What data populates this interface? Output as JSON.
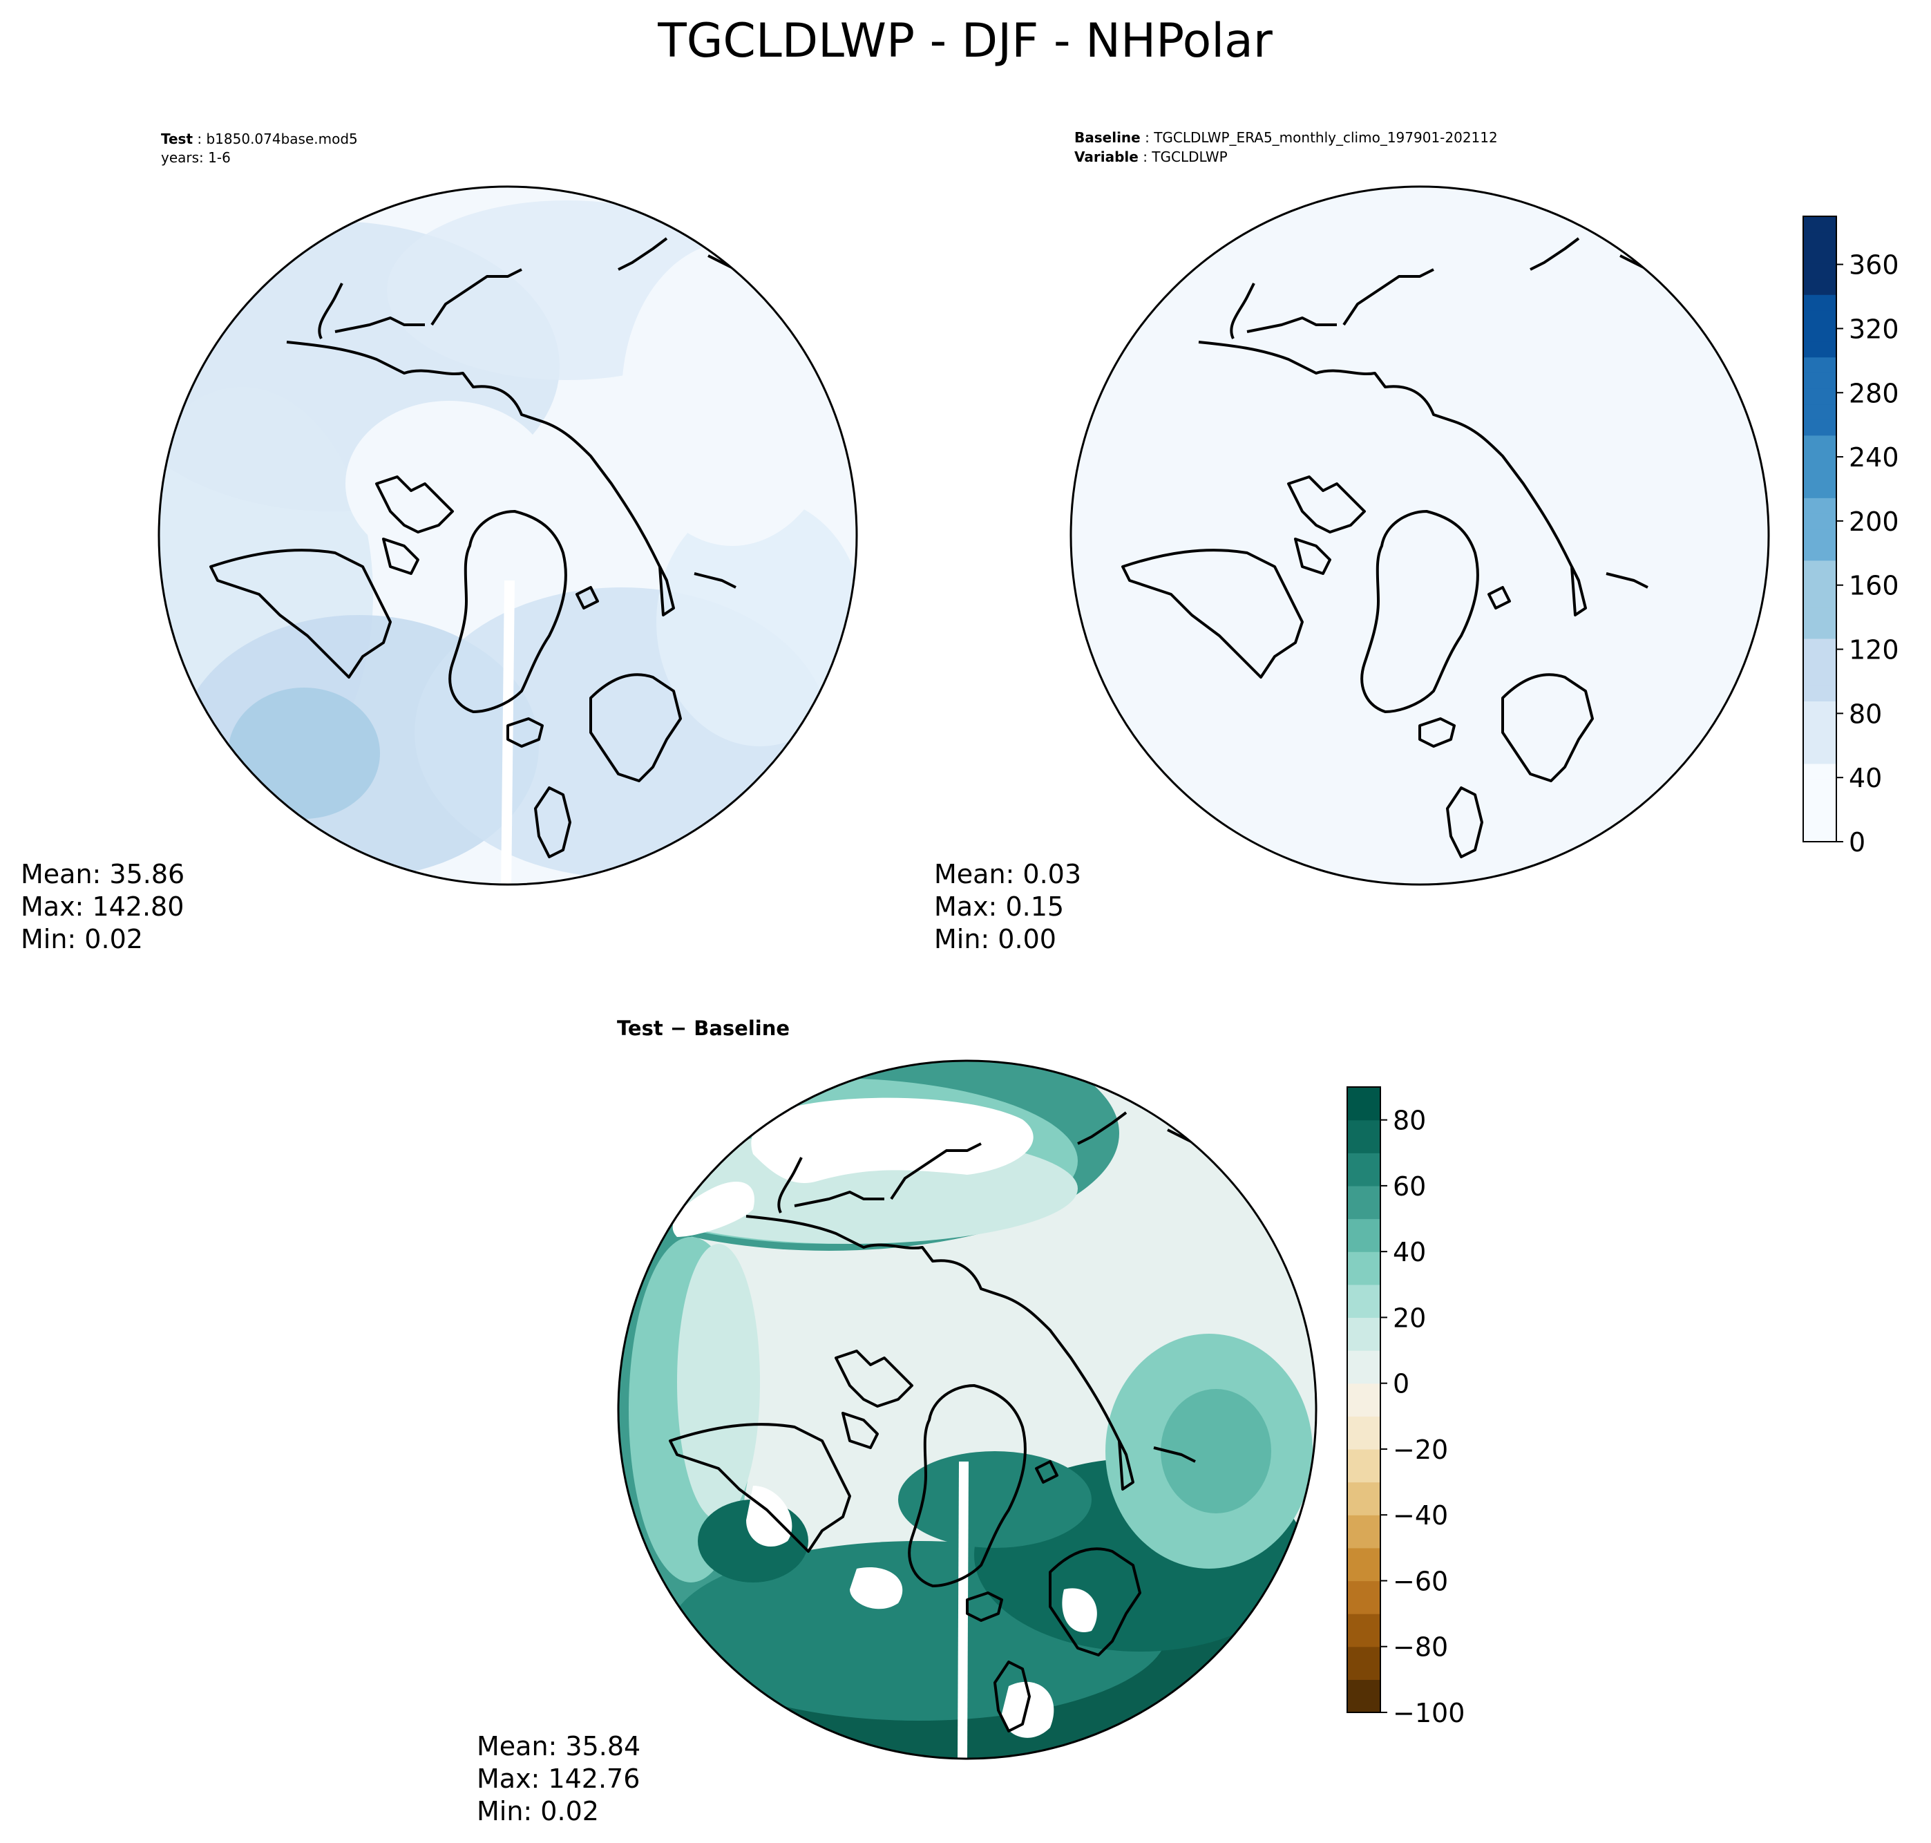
{
  "title": "TGCLDLWP - DJF - NHPolar",
  "chart_data": [
    {
      "type": "heatmap",
      "projection": "north-polar-stereographic",
      "panel": "test",
      "header": [
        {
          "key": "Test",
          "value": "b1850.074base.mod5"
        },
        {
          "key": "",
          "value": "years: 1-6"
        }
      ],
      "stats": {
        "mean": "Mean: 35.86",
        "max": "Max: 142.80",
        "min": "Min:  0.02"
      },
      "colormap": "Blues",
      "value_range": [
        0,
        380
      ],
      "missing_sector": "white wedge along 0° meridian (data gap)"
    },
    {
      "type": "heatmap",
      "projection": "north-polar-stereographic",
      "panel": "baseline",
      "header": [
        {
          "key": "Baseline",
          "value": "TGCLDLWP_ERA5_monthly_climo_197901-202112"
        },
        {
          "key": "Variable",
          "value": "TGCLDLWP"
        }
      ],
      "stats": {
        "mean": "Mean:  0.03",
        "max": "Max:  0.15",
        "min": "Min:  0.00"
      },
      "colormap": "Blues",
      "value_range": [
        0,
        380
      ]
    },
    {
      "type": "heatmap",
      "projection": "north-polar-stereographic",
      "panel": "difference",
      "header_label": "Test − Baseline",
      "stats": {
        "mean": "Mean: 35.84",
        "max": "Max: 142.76",
        "min": "Min:  0.02"
      },
      "colormap": "BrBG",
      "value_range": [
        -100,
        90
      ]
    }
  ],
  "colorbars": {
    "main": {
      "ticks": [
        "0",
        "40",
        "80",
        "120",
        "160",
        "200",
        "240",
        "280",
        "320",
        "360"
      ],
      "tick_values": [
        0,
        40,
        80,
        120,
        160,
        200,
        240,
        280,
        320,
        360
      ],
      "range": [
        0,
        390
      ],
      "colors": [
        "#f7fbff",
        "#deebf7",
        "#c6dbef",
        "#9ecae1",
        "#6baed6",
        "#4292c6",
        "#2171b5",
        "#08519c",
        "#08306b"
      ]
    },
    "diff": {
      "ticks": [
        "−100",
        "−80",
        "−60",
        "−40",
        "−20",
        "0",
        "20",
        "40",
        "60",
        "80"
      ],
      "tick_values": [
        -100,
        -80,
        -60,
        -40,
        -20,
        0,
        20,
        40,
        60,
        80
      ],
      "range": [
        -100,
        90
      ],
      "brown_colors": [
        "#543005",
        "#7c4606",
        "#9a5a0e",
        "#b87420",
        "#c98c33",
        "#d9a857",
        "#e6c380",
        "#f0d9a8",
        "#f5e8cc",
        "#f6f0e2"
      ],
      "green_colors": [
        "#e6f1ee",
        "#cdeae5",
        "#aadfd6",
        "#84cfc1",
        "#5fb8a9",
        "#3e9c8e",
        "#228476",
        "#0e6b5d",
        "#00574a"
      ]
    }
  },
  "colors": {
    "outline": "#000000",
    "blues_light": "#f3f8fd",
    "blues_mid": "#a8cde6",
    "brbg_dark": "#0b5e50",
    "brbg_light": "#e7f1ef"
  }
}
